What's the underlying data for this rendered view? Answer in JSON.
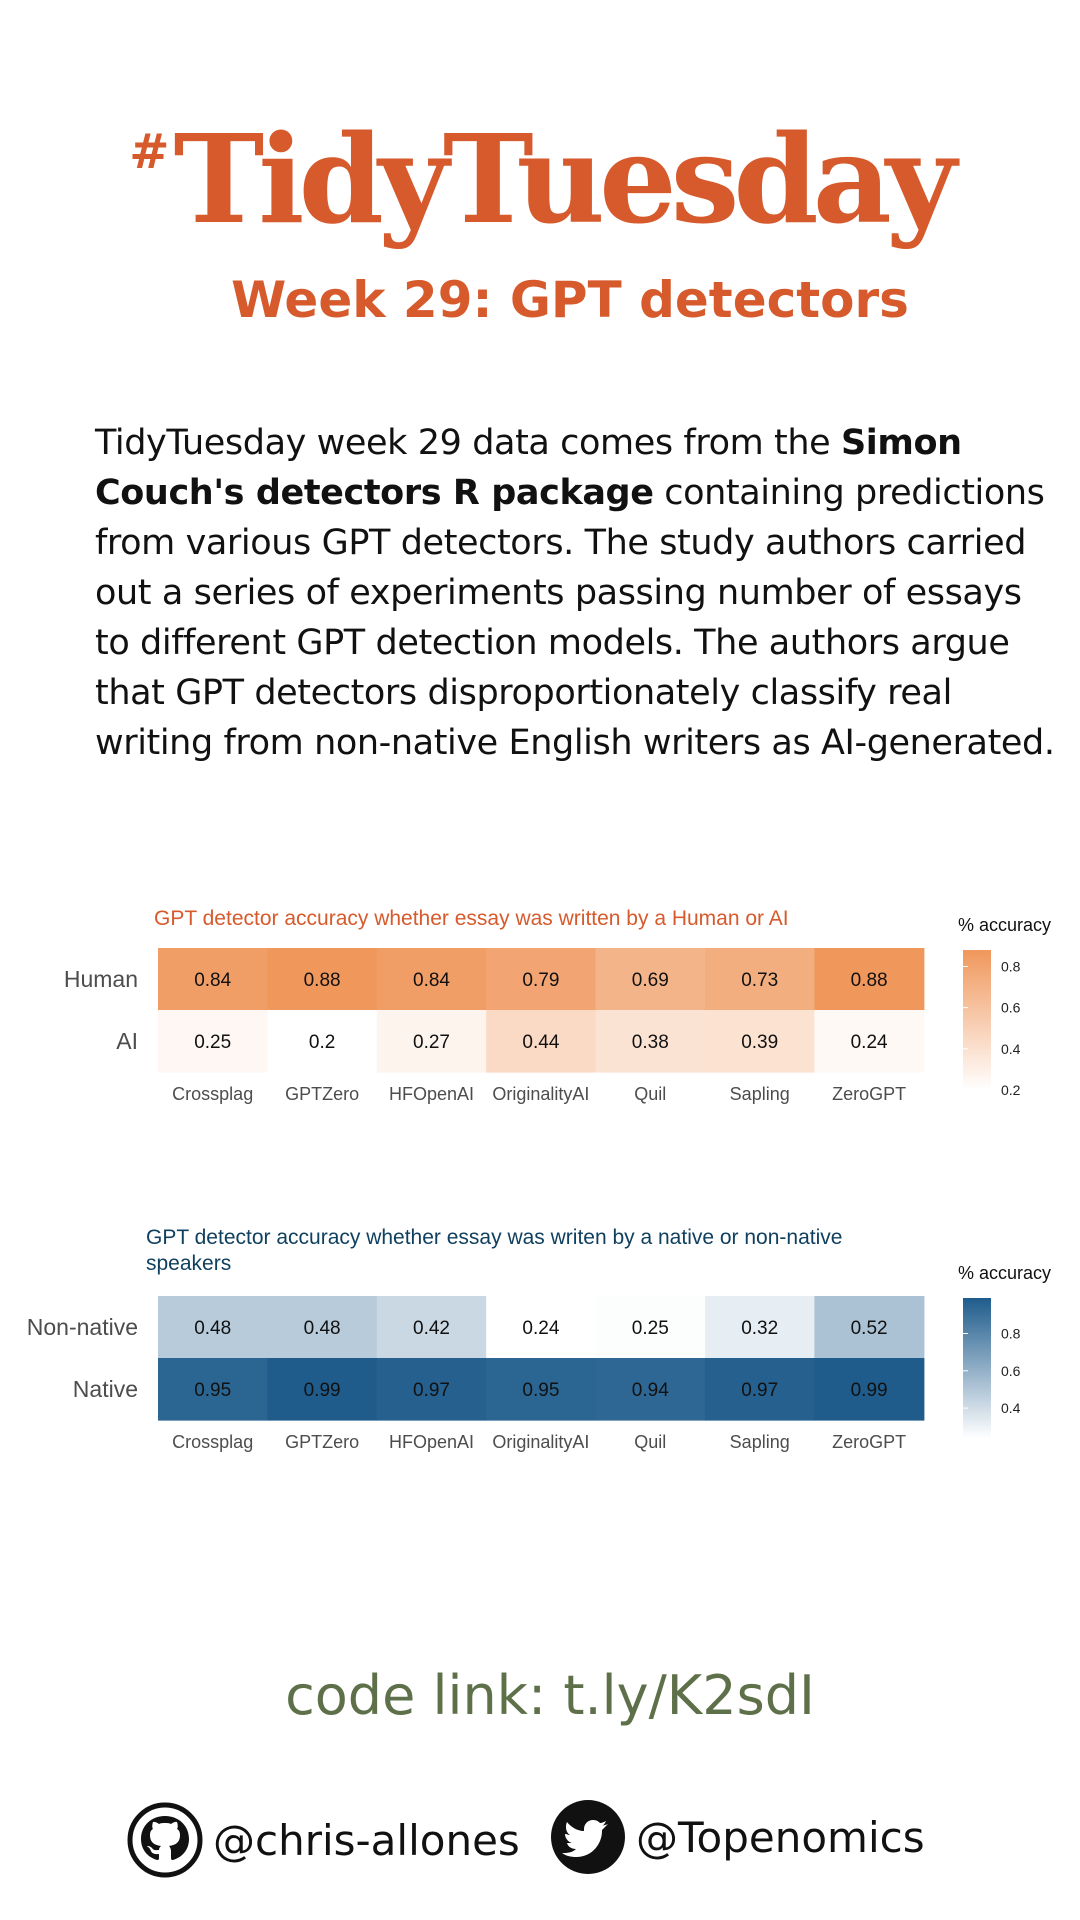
{
  "header": {
    "hash": "#",
    "title": "TidyTuesday",
    "subtitle": "Week 29: GPT detectors"
  },
  "intro": {
    "part1": "TidyTuesday week 29 data comes from the ",
    "bold": "Simon Couch's detectors R package",
    "part2": " containing predictions from various GPT detectors. The study authors carried out a series of experiments passing number of essays to different GPT detection models. The authors argue that GPT detectors disproportionately classify real writing from non-native English writers as AI-generated."
  },
  "chart_data": [
    {
      "type": "heatmap",
      "title": "GPT detector accuracy whether essay was written by a Human or AI",
      "x": [
        "Crossplag",
        "GPTZero",
        "HFOpenAI",
        "OriginalityAI",
        "Quil",
        "Sapling",
        "ZeroGPT"
      ],
      "y": [
        "Human",
        "AI"
      ],
      "values": [
        [
          0.84,
          0.88,
          0.84,
          0.79,
          0.69,
          0.73,
          0.88
        ],
        [
          0.25,
          0.2,
          0.27,
          0.44,
          0.38,
          0.39,
          0.24
        ]
      ],
      "labels": [
        [
          "0.84",
          "0.88",
          "0.84",
          "0.79",
          "0.69",
          "0.73",
          "0.88"
        ],
        [
          "0.25",
          "0.2",
          "0.27",
          "0.44",
          "0.38",
          "0.39",
          "0.24"
        ]
      ],
      "legend": {
        "title": "% accuracy",
        "ticks": [
          "0.8",
          "0.6",
          "0.4",
          "0.2"
        ],
        "tick_values": [
          0.8,
          0.6,
          0.4,
          0.2
        ],
        "range": [
          0.2,
          0.88
        ],
        "low_color": "#ffffff",
        "high_color": "#f0975c",
        "placement": "right"
      }
    },
    {
      "type": "heatmap",
      "title": "GPT detector accuracy whether essay was writen by a native or non-native speakers",
      "x": [
        "Crossplag",
        "GPTZero",
        "HFOpenAI",
        "OriginalityAI",
        "Quil",
        "Sapling",
        "ZeroGPT"
      ],
      "y": [
        "Non-native",
        "Native"
      ],
      "values": [
        [
          0.48,
          0.48,
          0.42,
          0.24,
          0.25,
          0.32,
          0.52
        ],
        [
          0.95,
          0.99,
          0.97,
          0.95,
          0.94,
          0.97,
          0.99
        ]
      ],
      "labels": [
        [
          "0.48",
          "0.48",
          "0.42",
          "0.24",
          "0.25",
          "0.32",
          "0.52"
        ],
        [
          "0.95",
          "0.99",
          "0.97",
          "0.95",
          "0.94",
          "0.97",
          "0.99"
        ]
      ],
      "legend": {
        "title": "% accuracy",
        "ticks": [
          "0.8",
          "0.6",
          "0.4"
        ],
        "tick_values": [
          0.8,
          0.6,
          0.4
        ],
        "range": [
          0.24,
          0.99
        ],
        "low_color": "#ffffff",
        "high_color": "#1f5c8c",
        "placement": "right"
      }
    }
  ],
  "footer": {
    "code_link": "code link: t.ly/K2sdI",
    "github_handle": "@chris-allones",
    "twitter_handle": "@Topenomics"
  },
  "colors": {
    "accent": "#d65a2c",
    "chart2_title": "#10405f",
    "code_link": "#5e7049"
  },
  "icons": {
    "github": "github-icon",
    "twitter": "twitter-icon"
  }
}
